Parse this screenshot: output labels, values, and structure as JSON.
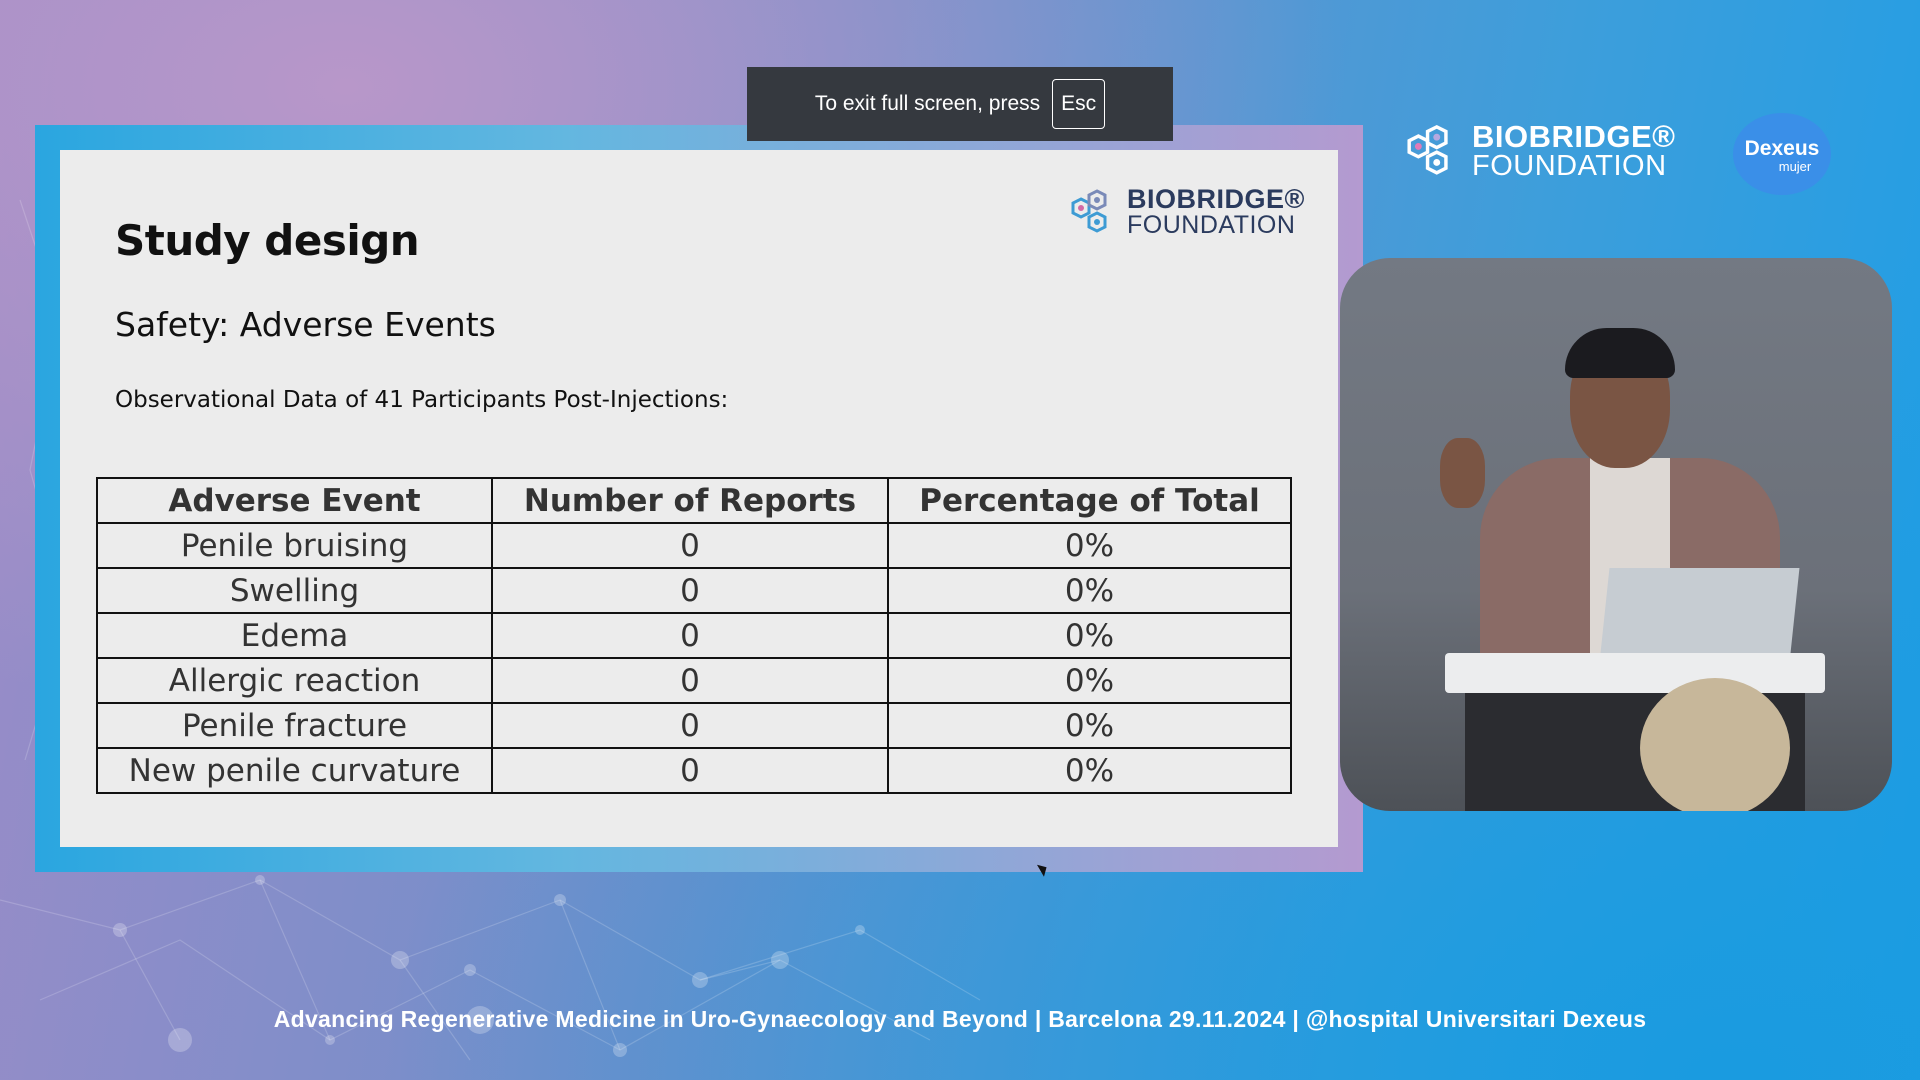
{
  "toast": {
    "text": "To exit full screen, press",
    "key": "Esc"
  },
  "slide": {
    "title": "Study design",
    "subtitle": "Safety: Adverse Events",
    "note": "Observational Data of 41 Participants Post-Injections:",
    "logo": {
      "line1": "BIOBRIDGE®",
      "line2": "FOUNDATION"
    },
    "table": {
      "headers": [
        "Adverse Event",
        "Number of Reports",
        "Percentage of Total"
      ],
      "rows": [
        [
          "Penile bruising",
          "0",
          "0%"
        ],
        [
          "Swelling",
          "0",
          "0%"
        ],
        [
          "Edema",
          "0",
          "0%"
        ],
        [
          "Allergic reaction",
          "0",
          "0%"
        ],
        [
          "Penile fracture",
          "0",
          "0%"
        ],
        [
          "New penile curvature",
          "0",
          "0%"
        ]
      ]
    }
  },
  "brand": {
    "line1": "BIOBRIDGE®",
    "line2": "FOUNDATION"
  },
  "dexeus": {
    "name": "Dexeus",
    "sub": "mujer"
  },
  "footer": "Advancing Regenerative Medicine in Uro-Gynaecology and Beyond | Barcelona 29.11.2024 | @hospital Universitari Dexeus",
  "colors": {
    "accent": "#2aa6e0",
    "logo_text": "#2b3b5e",
    "toast_bg": "#35393f"
  },
  "icons": [
    "hexagon-logo-icon",
    "mouse-cursor-icon"
  ]
}
